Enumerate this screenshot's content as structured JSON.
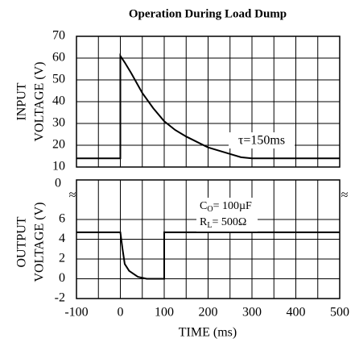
{
  "chart_data": [
    {
      "type": "line",
      "title": "Operation During Load Dump",
      "ylabel": [
        "INPUT",
        "VOLTAGE (V)"
      ],
      "xlim": [
        -100,
        500
      ],
      "xticks": [
        -100,
        0,
        100,
        200,
        300,
        400,
        500
      ],
      "xminor": [
        -50,
        50,
        150,
        250,
        350,
        450
      ],
      "ylim": [
        10,
        70
      ],
      "yticks": [
        10,
        20,
        30,
        40,
        50,
        60,
        70
      ],
      "grid": true,
      "x": [
        -100,
        0,
        0,
        10,
        25,
        50,
        75,
        100,
        125,
        150,
        200,
        250,
        275,
        300,
        500
      ],
      "series": [
        {
          "name": "Input",
          "color": "#000000",
          "values": [
            14,
            14,
            61,
            58,
            53,
            44,
            37,
            31,
            27,
            24,
            19,
            16,
            14.5,
            14,
            14
          ]
        }
      ],
      "annotation": "τ=150ms"
    },
    {
      "type": "line",
      "ylabel": [
        "OUTPUT",
        "VOLTAGE (V)"
      ],
      "xlabel": "TIME (ms)",
      "xlim": [
        -100,
        500
      ],
      "xticks": [
        -100,
        0,
        100,
        200,
        300,
        400,
        500
      ],
      "xminor": [
        -50,
        50,
        150,
        250,
        350,
        450
      ],
      "ylim": [
        -2,
        10
      ],
      "yticks": [
        -2,
        0,
        2,
        4,
        6
      ],
      "grid": true,
      "top_label": "0",
      "break_mark": "≈",
      "x": [
        -100,
        0,
        5,
        10,
        20,
        40,
        60,
        100,
        100,
        500
      ],
      "series": [
        {
          "name": "Output",
          "color": "#000000",
          "values": [
            4.7,
            4.7,
            3,
            1.5,
            0.8,
            0.2,
            0,
            0,
            4.7,
            4.7
          ]
        }
      ],
      "co": {
        "main": "C",
        "sub": "O",
        "rest": "= 100µF"
      },
      "rl": {
        "main": "R",
        "sub": "L",
        "rest": "= 500Ω"
      }
    }
  ]
}
